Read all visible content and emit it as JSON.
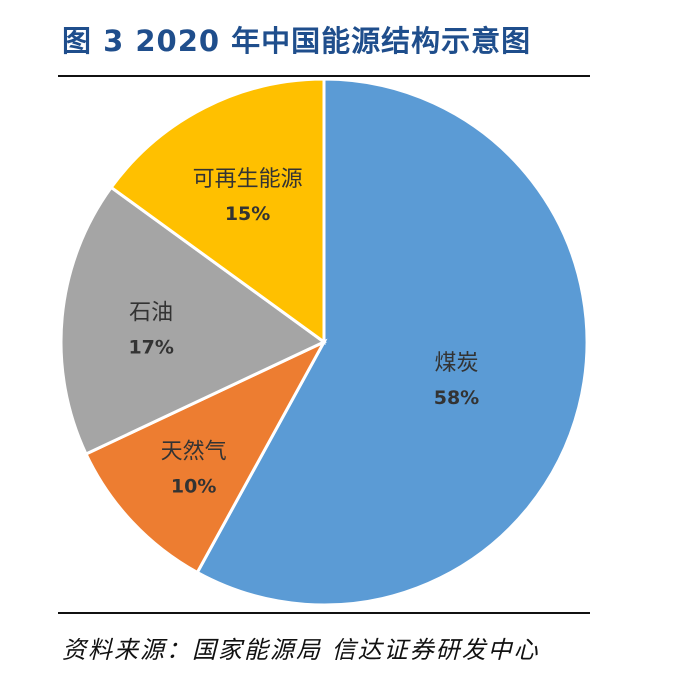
{
  "title": "图 3 2020 年中国能源结构示意图",
  "source": "资料来源：国家能源局 信达证券研发中心",
  "chart_data": {
    "type": "pie",
    "title": "图 3 2020 年中国能源结构示意图",
    "slices": [
      {
        "label": "煤炭",
        "value": 58,
        "value_label": "58%",
        "color": "#5b9bd5"
      },
      {
        "label": "天然气",
        "value": 10,
        "value_label": "10%",
        "color": "#ed7d31"
      },
      {
        "label": "石油",
        "value": 17,
        "value_label": "17%",
        "color": "#a5a5a5"
      },
      {
        "label": "可再生能源",
        "value": 15,
        "value_label": "15%",
        "color": "#ffc000"
      }
    ],
    "start": "12 o'clock",
    "direction": "clockwise",
    "legend": "none"
  }
}
